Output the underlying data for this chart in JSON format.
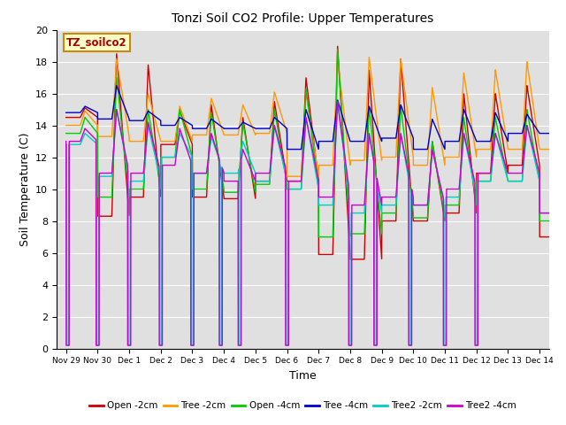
{
  "title": "Tonzi Soil CO2 Profile: Upper Temperatures",
  "xlabel": "Time",
  "ylabel": "Soil Temperature (C)",
  "ylim": [
    0,
    20
  ],
  "background_color": "#e0e0e0",
  "annotation_text": "TZ_soilco2",
  "series": [
    {
      "label": "Open -2cm",
      "color": "#cc0000"
    },
    {
      "label": "Tree -2cm",
      "color": "#ff9900"
    },
    {
      "label": "Open -4cm",
      "color": "#00cc00"
    },
    {
      "label": "Tree -4cm",
      "color": "#0000cc"
    },
    {
      "label": "Tree2 -2cm",
      "color": "#00cccc"
    },
    {
      "label": "Tree2 -4cm",
      "color": "#cc00cc"
    }
  ],
  "xtick_labels": [
    "Nov 29",
    "Nov 30",
    "Dec 1",
    "Dec 2",
    "Dec 3",
    "Dec 4",
    "Dec 5",
    "Dec 6",
    "Dec 7",
    "Dec 8",
    "Dec 9",
    "Dec 10",
    "Dec 11",
    "Dec 12",
    "Dec 13",
    "Dec 14"
  ],
  "ytick_vals": [
    0,
    2,
    4,
    6,
    8,
    10,
    12,
    14,
    16,
    18,
    20
  ],
  "grid_color": "#ffffff",
  "linewidth": 1.0,
  "figsize": [
    6.4,
    4.8
  ],
  "dpi": 100
}
